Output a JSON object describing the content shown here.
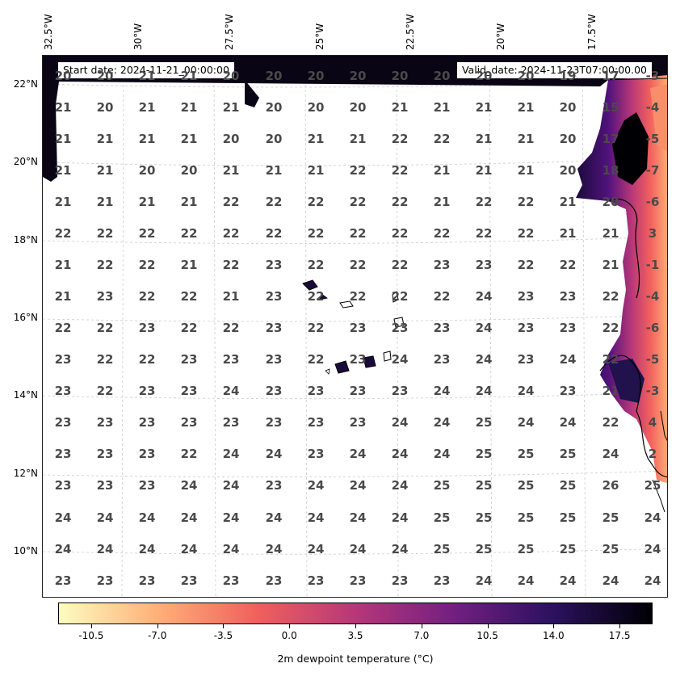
{
  "header": {
    "start_date": "Start date: 2024-11-21_00:00:00",
    "valid_date": "Valid_date: 2024-11-23T07:00:00.00"
  },
  "axes": {
    "lon_labels": [
      "32.5°W",
      "30°W",
      "27.5°W",
      "25°W",
      "22.5°W",
      "20°W",
      "17.5°W"
    ],
    "lat_labels": [
      "22°N",
      "20°N",
      "18°N",
      "16°N",
      "14°N",
      "12°N",
      "10°N"
    ]
  },
  "grid_values": [
    [
      "20",
      "20",
      "21",
      "21",
      "20",
      "20",
      "20",
      "20",
      "20",
      "20",
      "20",
      "20",
      "19",
      "17",
      "-3"
    ],
    [
      "21",
      "20",
      "21",
      "21",
      "21",
      "20",
      "20",
      "20",
      "21",
      "21",
      "21",
      "21",
      "20",
      "15",
      "-4"
    ],
    [
      "21",
      "21",
      "21",
      "21",
      "20",
      "20",
      "21",
      "21",
      "22",
      "22",
      "21",
      "21",
      "20",
      "17",
      "-5"
    ],
    [
      "21",
      "21",
      "20",
      "20",
      "21",
      "21",
      "21",
      "22",
      "22",
      "21",
      "21",
      "21",
      "20",
      "18",
      "-7"
    ],
    [
      "21",
      "21",
      "21",
      "21",
      "22",
      "22",
      "22",
      "22",
      "22",
      "21",
      "22",
      "22",
      "21",
      "20",
      "-6"
    ],
    [
      "22",
      "22",
      "22",
      "22",
      "22",
      "22",
      "22",
      "22",
      "22",
      "22",
      "22",
      "22",
      "21",
      "21",
      "3"
    ],
    [
      "21",
      "22",
      "22",
      "21",
      "22",
      "23",
      "22",
      "22",
      "22",
      "23",
      "23",
      "22",
      "22",
      "21",
      "-1"
    ],
    [
      "21",
      "23",
      "22",
      "22",
      "21",
      "23",
      "22",
      "22",
      "22",
      "22",
      "24",
      "23",
      "23",
      "22",
      "-4"
    ],
    [
      "22",
      "22",
      "23",
      "22",
      "22",
      "23",
      "22",
      "23",
      "23",
      "23",
      "24",
      "23",
      "23",
      "22",
      "-6"
    ],
    [
      "23",
      "22",
      "22",
      "23",
      "23",
      "23",
      "22",
      "23",
      "24",
      "23",
      "24",
      "23",
      "24",
      "22",
      "-5"
    ],
    [
      "23",
      "22",
      "23",
      "23",
      "24",
      "23",
      "23",
      "23",
      "23",
      "24",
      "24",
      "24",
      "23",
      "21",
      "-3"
    ],
    [
      "23",
      "23",
      "23",
      "23",
      "23",
      "23",
      "23",
      "23",
      "24",
      "24",
      "25",
      "24",
      "24",
      "22",
      "4"
    ],
    [
      "23",
      "23",
      "23",
      "22",
      "24",
      "24",
      "23",
      "24",
      "24",
      "24",
      "25",
      "25",
      "25",
      "24",
      "2"
    ],
    [
      "23",
      "23",
      "23",
      "24",
      "24",
      "23",
      "24",
      "24",
      "24",
      "25",
      "25",
      "25",
      "25",
      "26",
      "25"
    ],
    [
      "24",
      "24",
      "24",
      "24",
      "24",
      "24",
      "24",
      "24",
      "24",
      "25",
      "25",
      "25",
      "25",
      "25",
      "24"
    ],
    [
      "24",
      "24",
      "24",
      "24",
      "24",
      "24",
      "24",
      "24",
      "24",
      "25",
      "25",
      "25",
      "25",
      "25",
      "24"
    ],
    [
      "23",
      "23",
      "23",
      "23",
      "23",
      "23",
      "23",
      "23",
      "23",
      "23",
      "24",
      "24",
      "24",
      "24",
      "24"
    ]
  ],
  "colorbar": {
    "title": "2m dewpoint temperature (°C)",
    "ticks": [
      "-10.5",
      "-7.0",
      "-3.5",
      "0.0",
      "3.5",
      "7.0",
      "10.5",
      "14.0",
      "17.5"
    ],
    "range": [
      -12.25,
      19.25
    ],
    "colormap": "magma_r",
    "colors": [
      "#fcfdbf",
      "#feb078",
      "#f1605d",
      "#b73779",
      "#721f81",
      "#2c115f",
      "#000004"
    ]
  }
}
